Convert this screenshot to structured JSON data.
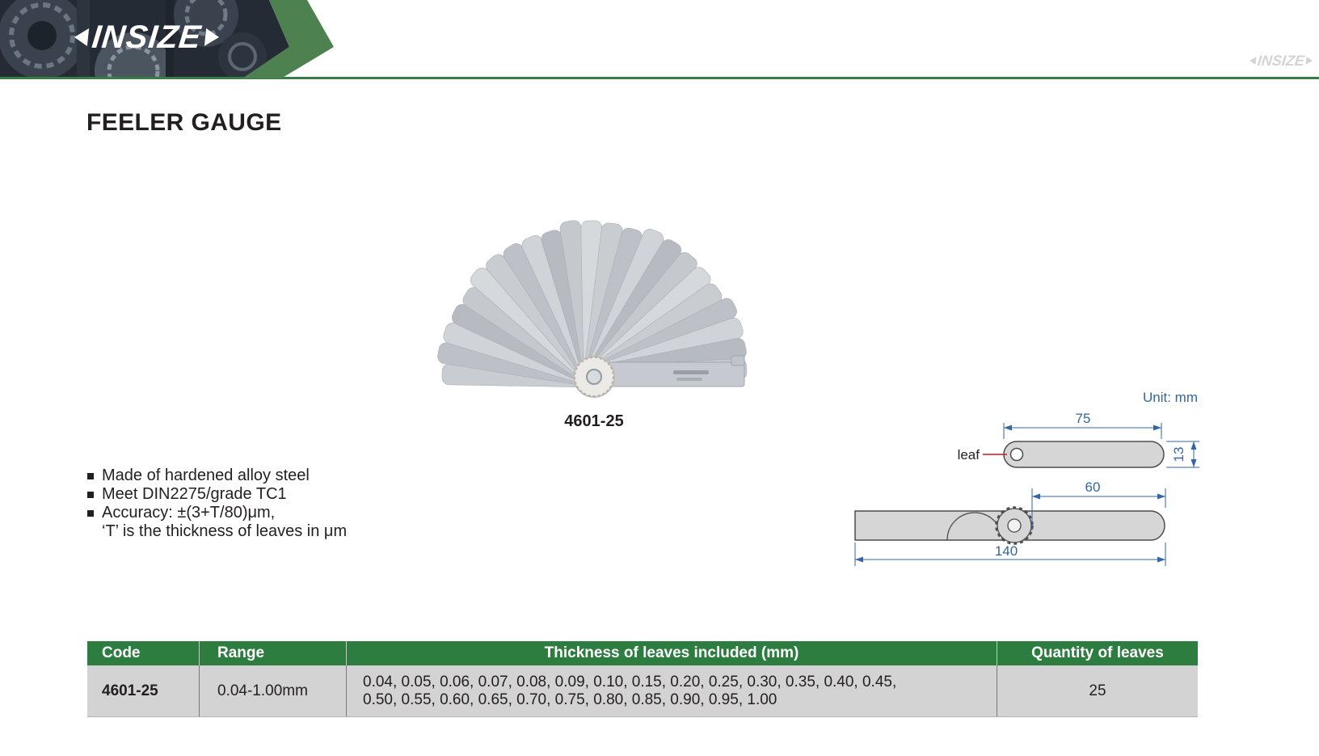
{
  "header": {
    "logo_text": "INSIZE",
    "watermark_text": "INSIZE"
  },
  "page": {
    "title": "FEELER GAUGE"
  },
  "product": {
    "code_label": "4601-25",
    "features": [
      "Made of hardened alloy steel",
      "Meet DIN2275/grade TC1",
      "Accuracy: ±(3+T/80)μm,",
      "‘T’ is the thickness of leaves in μm"
    ]
  },
  "diagram": {
    "unit_label": "Unit: mm",
    "leaf_label": "leaf",
    "dims": {
      "leaf_length": "75",
      "leaf_width": "13",
      "tip_length": "60",
      "total_length": "140"
    }
  },
  "table": {
    "headers": {
      "code": "Code",
      "range": "Range",
      "thickness": "Thickness of leaves included (mm)",
      "quantity": "Quantity of leaves"
    },
    "row": {
      "code": "4601-25",
      "range": "0.04-1.00mm",
      "thickness_line1": "0.04, 0.05, 0.06, 0.07, 0.08, 0.09, 0.10, 0.15, 0.20, 0.25, 0.30, 0.35, 0.40, 0.45,",
      "thickness_line2": "0.50, 0.55, 0.60, 0.65, 0.70, 0.75, 0.80, 0.85, 0.90, 0.95, 1.00",
      "quantity": "25"
    }
  },
  "colors": {
    "table_green": "#2e7d40",
    "chevron_green": "#4d8150",
    "rule_green": "#3a7d44",
    "dim_blue": "#3465a4",
    "leader_red": "#d11919",
    "row_gray": "#d3d3d3",
    "text_dark": "#231f20"
  }
}
